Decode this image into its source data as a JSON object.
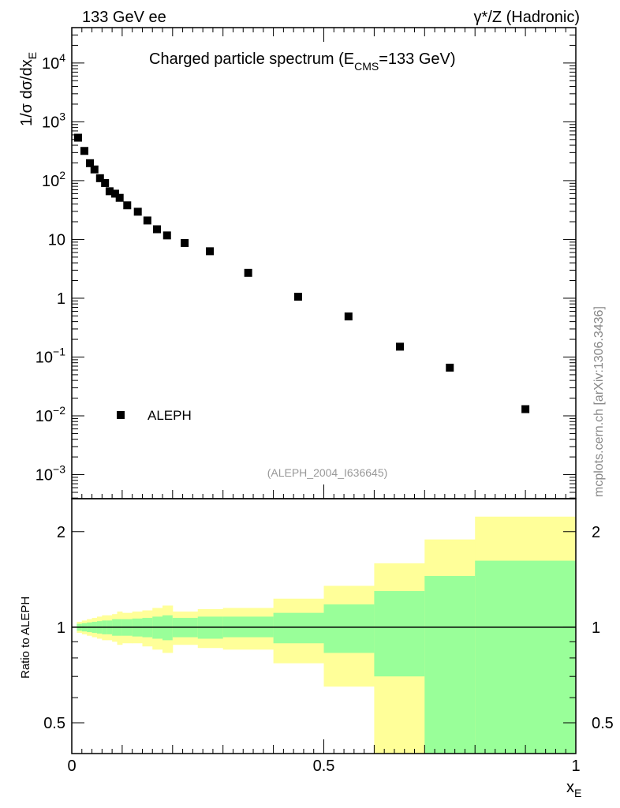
{
  "header": {
    "left": "133 GeV ee",
    "right": "γ*/Z (Hadronic)"
  },
  "watermark": "mcplots.cern.ch [arXiv:1306.3436]",
  "chart_data": [
    {
      "type": "scatter",
      "title_main": "Charged particle spectrum (E",
      "title_sub": "CMS",
      "title_end": "=133 GeV)",
      "ylabel_main": "1/σ  dσ/dx",
      "ylabel_sub": "E",
      "yscale": "log",
      "ylim": [
        0.00039,
        40000
      ],
      "xlim": [
        0,
        1
      ],
      "yticks": [
        {
          "v": 0.001,
          "base": "10",
          "exp": "−3"
        },
        {
          "v": 0.01,
          "base": "10",
          "exp": "−2"
        },
        {
          "v": 0.1,
          "base": "10",
          "exp": "−1"
        },
        {
          "v": 1,
          "base": "1",
          "exp": ""
        },
        {
          "v": 10,
          "base": "10",
          "exp": ""
        },
        {
          "v": 100,
          "base": "10",
          "exp": "2"
        },
        {
          "v": 1000,
          "base": "10",
          "exp": "3"
        },
        {
          "v": 10000,
          "base": "10",
          "exp": "4"
        }
      ],
      "legend": {
        "label": "ALEPH",
        "placement": "bottom-left"
      },
      "analysis_label": "(ALEPH_2004_I636645)",
      "series": [
        {
          "name": "ALEPH",
          "x": [
            0.0125,
            0.025,
            0.036,
            0.045,
            0.056,
            0.066,
            0.075,
            0.086,
            0.095,
            0.11,
            0.131,
            0.15,
            0.169,
            0.189,
            0.224,
            0.274,
            0.35,
            0.449,
            0.549,
            0.651,
            0.75,
            0.9
          ],
          "y": [
            537,
            320,
            198,
            155,
            110,
            91,
            66,
            60,
            51,
            38,
            29.6,
            21,
            14.9,
            11.7,
            8.7,
            6.3,
            2.7,
            1.06,
            0.49,
            0.15,
            0.066,
            0.013
          ]
        }
      ]
    },
    {
      "type": "area",
      "ylabel": "Ratio to ALEPH",
      "yscale": "log",
      "ylim": [
        0.4,
        2.54
      ],
      "xlim": [
        0,
        1
      ],
      "xlabel_main": "x",
      "xlabel_sub": "E",
      "xticks": [
        {
          "v": 0,
          "label": "0"
        },
        {
          "v": 0.5,
          "label": "0.5"
        },
        {
          "v": 1,
          "label": "1"
        }
      ],
      "yticks": [
        {
          "v": 0.5,
          "label": "0.5"
        },
        {
          "v": 1,
          "label": "1"
        },
        {
          "v": 2,
          "label": "2"
        }
      ],
      "reference_line": 1,
      "colors": {
        "inner": "#99ff99",
        "outer": "#ffff99"
      },
      "bins": [
        0.01,
        0.02,
        0.03,
        0.04,
        0.05,
        0.06,
        0.07,
        0.08,
        0.09,
        0.1,
        0.12,
        0.14,
        0.16,
        0.18,
        0.2,
        0.25,
        0.3,
        0.4,
        0.5,
        0.6,
        0.7,
        0.8,
        1.0
      ],
      "inner_up": [
        1.025,
        1.03,
        1.035,
        1.04,
        1.045,
        1.05,
        1.05,
        1.06,
        1.06,
        1.06,
        1.065,
        1.07,
        1.08,
        1.09,
        1.07,
        1.08,
        1.08,
        1.11,
        1.18,
        1.3,
        1.45,
        1.62
      ],
      "inner_dn": [
        0.975,
        0.97,
        0.965,
        0.96,
        0.955,
        0.95,
        0.95,
        0.94,
        0.94,
        0.94,
        0.935,
        0.93,
        0.92,
        0.91,
        0.93,
        0.92,
        0.93,
        0.89,
        0.83,
        0.7,
        0.4,
        0.4
      ],
      "outer_up": [
        1.04,
        1.05,
        1.06,
        1.07,
        1.08,
        1.09,
        1.09,
        1.1,
        1.12,
        1.11,
        1.12,
        1.13,
        1.15,
        1.17,
        1.12,
        1.14,
        1.15,
        1.23,
        1.35,
        1.59,
        1.89,
        2.23
      ],
      "outer_dn": [
        0.96,
        0.95,
        0.94,
        0.93,
        0.92,
        0.91,
        0.91,
        0.9,
        0.88,
        0.89,
        0.89,
        0.87,
        0.85,
        0.83,
        0.88,
        0.86,
        0.85,
        0.77,
        0.65,
        0.4,
        0.55,
        0.4
      ]
    }
  ]
}
